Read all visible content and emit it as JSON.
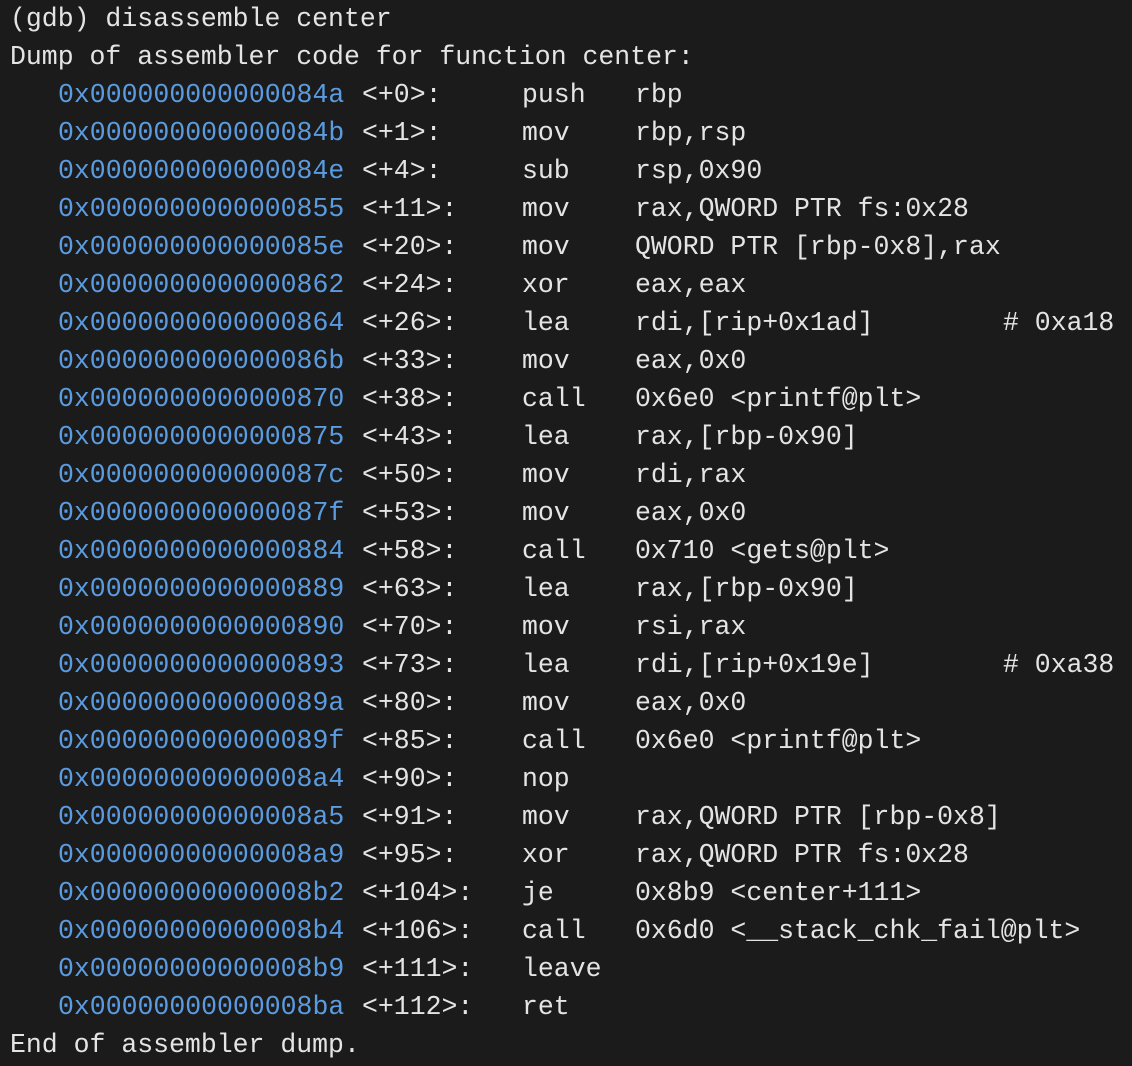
{
  "command": "(gdb) disassemble center",
  "header": "Dump of assembler code for function center:",
  "instructions": [
    {
      "address": "0x000000000000084a",
      "offset": "<+0>:",
      "mnemonic": "push",
      "operands": "rbp"
    },
    {
      "address": "0x000000000000084b",
      "offset": "<+1>:",
      "mnemonic": "mov",
      "operands": "rbp,rsp"
    },
    {
      "address": "0x000000000000084e",
      "offset": "<+4>:",
      "mnemonic": "sub",
      "operands": "rsp,0x90"
    },
    {
      "address": "0x0000000000000855",
      "offset": "<+11>:",
      "mnemonic": "mov",
      "operands": "rax,QWORD PTR fs:0x28"
    },
    {
      "address": "0x000000000000085e",
      "offset": "<+20>:",
      "mnemonic": "mov",
      "operands": "QWORD PTR [rbp-0x8],rax"
    },
    {
      "address": "0x0000000000000862",
      "offset": "<+24>:",
      "mnemonic": "xor",
      "operands": "eax,eax"
    },
    {
      "address": "0x0000000000000864",
      "offset": "<+26>:",
      "mnemonic": "lea",
      "operands": "rdi,[rip+0x1ad]",
      "comment": "# 0xa18"
    },
    {
      "address": "0x000000000000086b",
      "offset": "<+33>:",
      "mnemonic": "mov",
      "operands": "eax,0x0"
    },
    {
      "address": "0x0000000000000870",
      "offset": "<+38>:",
      "mnemonic": "call",
      "operands": "0x6e0 <printf@plt>"
    },
    {
      "address": "0x0000000000000875",
      "offset": "<+43>:",
      "mnemonic": "lea",
      "operands": "rax,[rbp-0x90]"
    },
    {
      "address": "0x000000000000087c",
      "offset": "<+50>:",
      "mnemonic": "mov",
      "operands": "rdi,rax"
    },
    {
      "address": "0x000000000000087f",
      "offset": "<+53>:",
      "mnemonic": "mov",
      "operands": "eax,0x0"
    },
    {
      "address": "0x0000000000000884",
      "offset": "<+58>:",
      "mnemonic": "call",
      "operands": "0x710 <gets@plt>"
    },
    {
      "address": "0x0000000000000889",
      "offset": "<+63>:",
      "mnemonic": "lea",
      "operands": "rax,[rbp-0x90]"
    },
    {
      "address": "0x0000000000000890",
      "offset": "<+70>:",
      "mnemonic": "mov",
      "operands": "rsi,rax"
    },
    {
      "address": "0x0000000000000893",
      "offset": "<+73>:",
      "mnemonic": "lea",
      "operands": "rdi,[rip+0x19e]",
      "comment": "# 0xa38"
    },
    {
      "address": "0x000000000000089a",
      "offset": "<+80>:",
      "mnemonic": "mov",
      "operands": "eax,0x0"
    },
    {
      "address": "0x000000000000089f",
      "offset": "<+85>:",
      "mnemonic": "call",
      "operands": "0x6e0 <printf@plt>"
    },
    {
      "address": "0x00000000000008a4",
      "offset": "<+90>:",
      "mnemonic": "nop"
    },
    {
      "address": "0x00000000000008a5",
      "offset": "<+91>:",
      "mnemonic": "mov",
      "operands": "rax,QWORD PTR [rbp-0x8]"
    },
    {
      "address": "0x00000000000008a9",
      "offset": "<+95>:",
      "mnemonic": "xor",
      "operands": "rax,QWORD PTR fs:0x28"
    },
    {
      "address": "0x00000000000008b2",
      "offset": "<+104>:",
      "mnemonic": "je",
      "operands": "0x8b9 <center+111>"
    },
    {
      "address": "0x00000000000008b4",
      "offset": "<+106>:",
      "mnemonic": "call",
      "operands": "0x6d0 <__stack_chk_fail@plt>"
    },
    {
      "address": "0x00000000000008b9",
      "offset": "<+111>:",
      "mnemonic": "leave"
    },
    {
      "address": "0x00000000000008ba",
      "offset": "<+112>:",
      "mnemonic": "ret"
    }
  ],
  "footer": "End of assembler dump."
}
